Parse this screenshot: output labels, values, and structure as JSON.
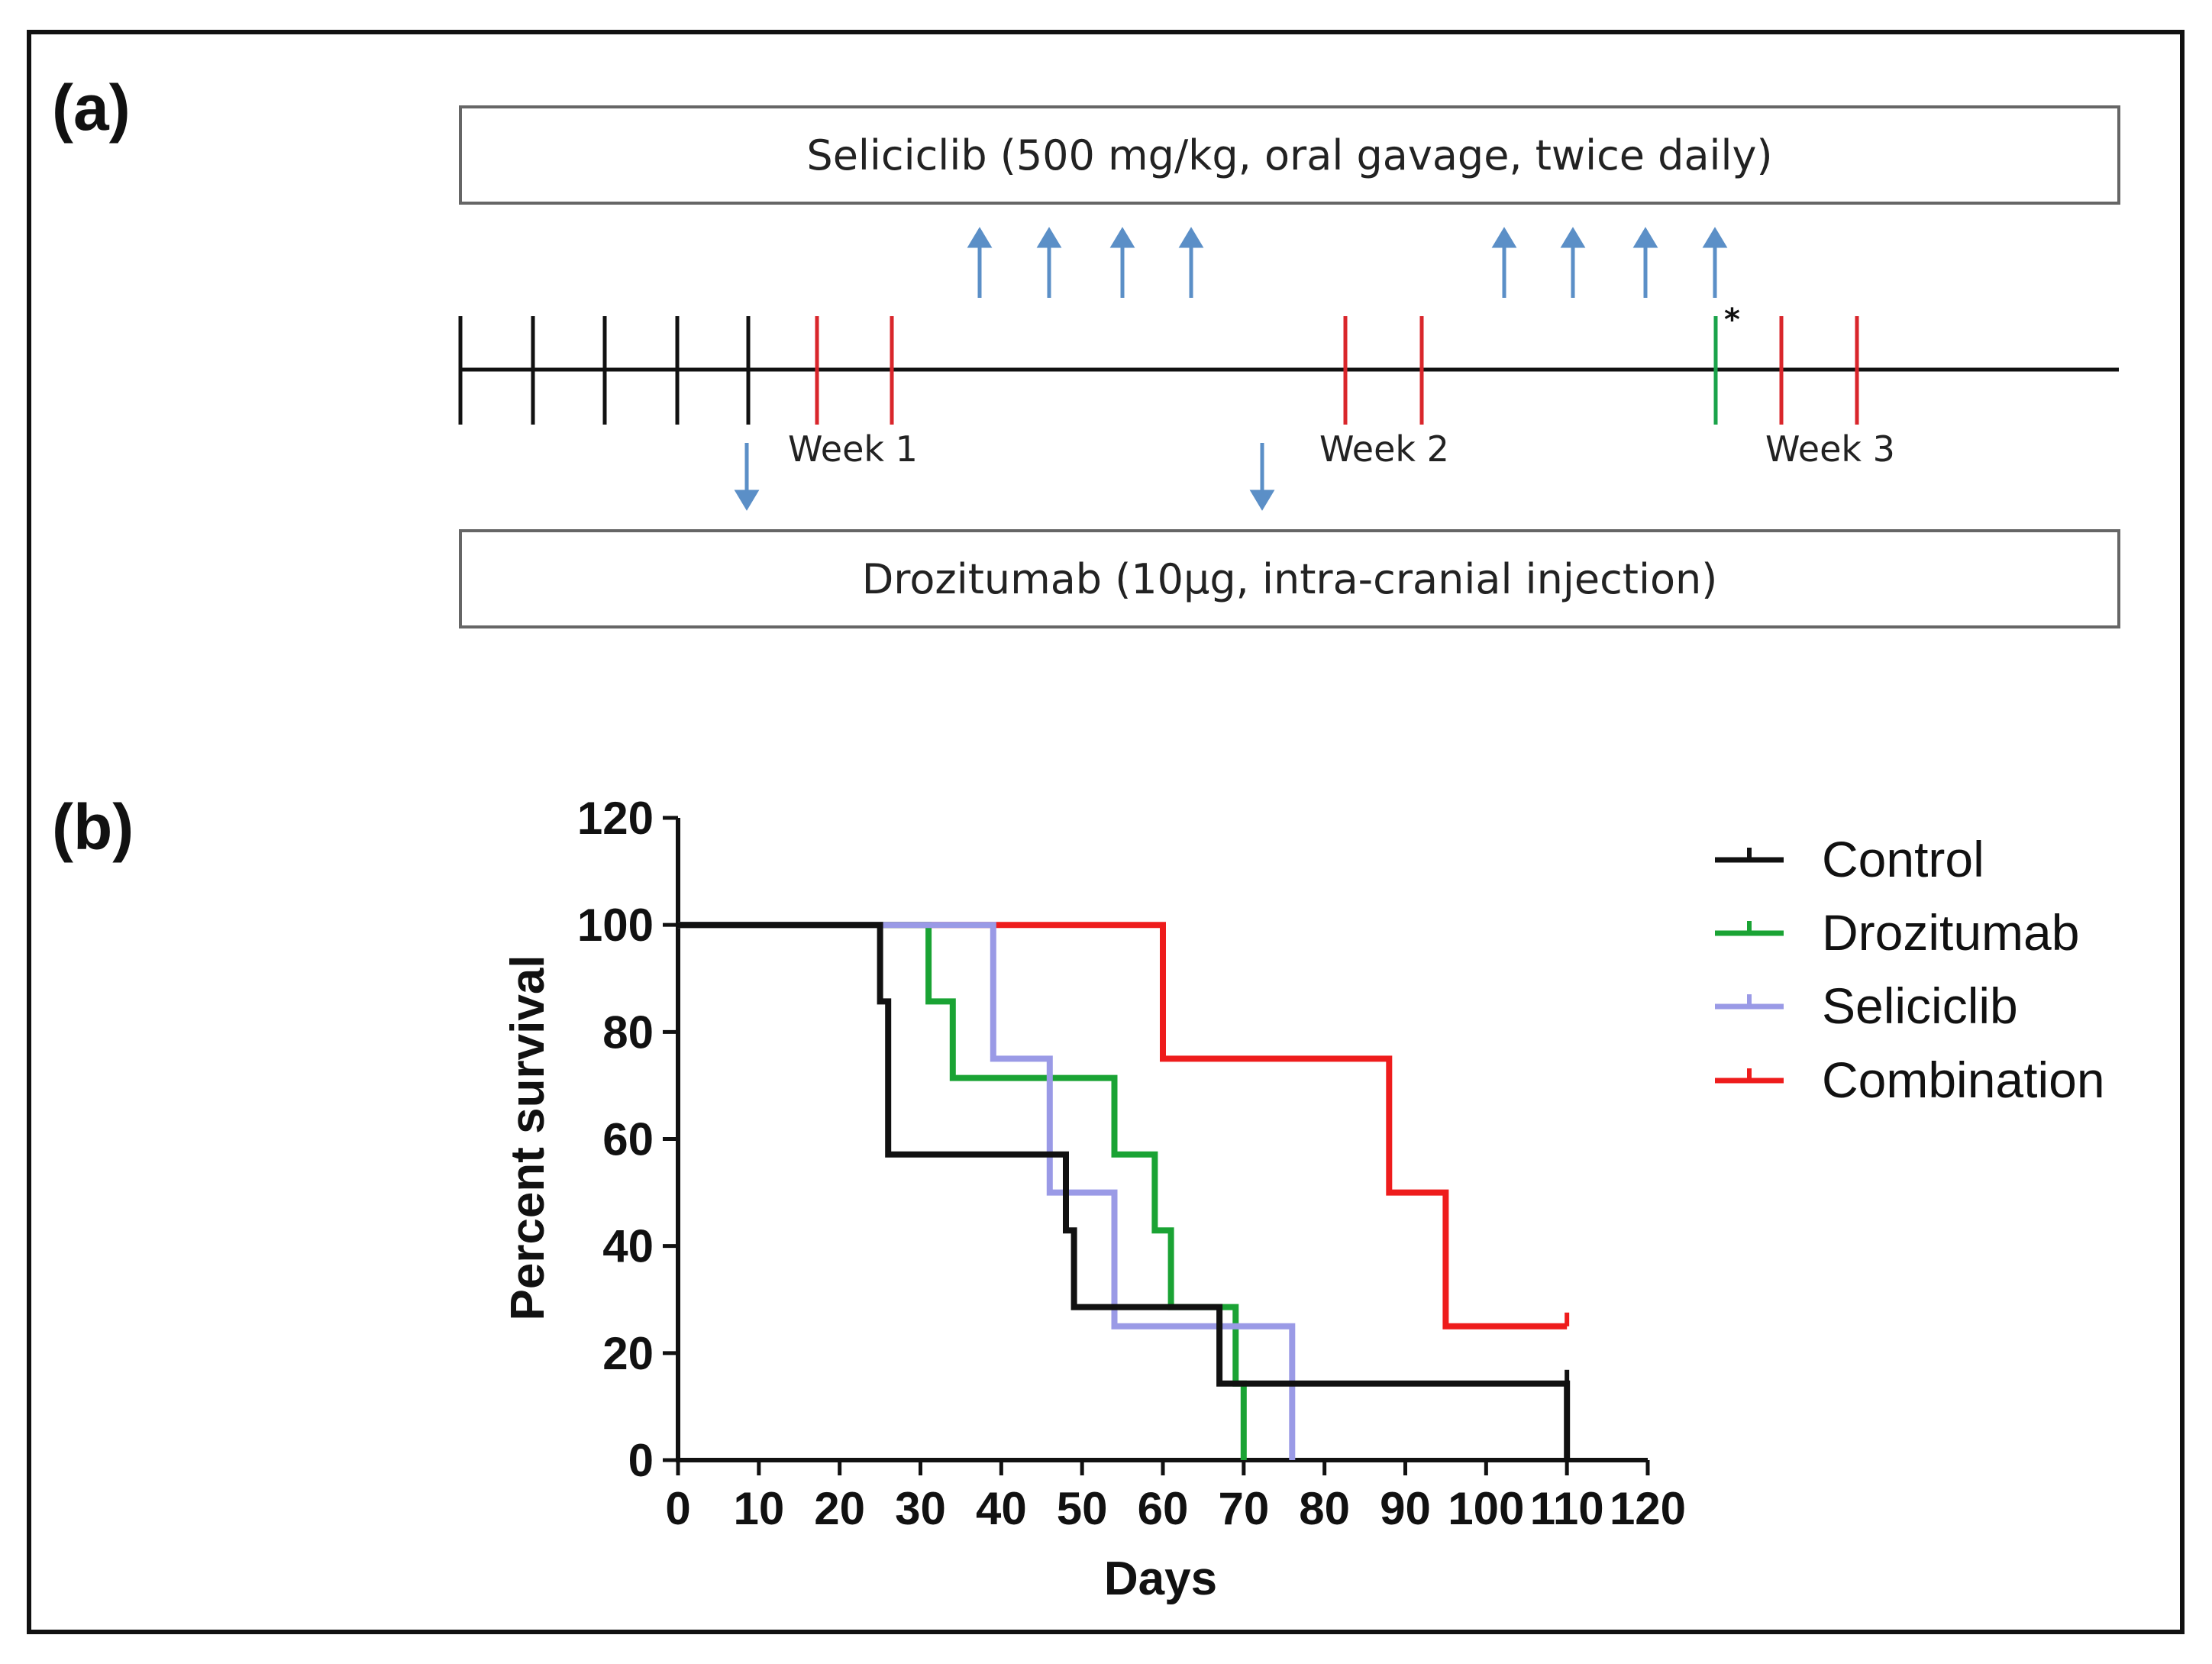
{
  "panel_a": {
    "label": "(a)",
    "seliciclib_box": "Seliciclib (500 mg/kg, oral gavage, twice daily)",
    "drozitumab_box": "Drozitumab (10µg, intra-cranial injection)",
    "weeks": [
      "Week 1",
      "Week 2",
      "Week 3"
    ],
    "asterisk": "*",
    "colors": {
      "black_tick": "#111111",
      "red_tick": "#d9262b",
      "green_tick": "#1aa34a",
      "arrow": "#5b8fc7"
    }
  },
  "panel_b": {
    "label": "(b)"
  },
  "chart_data": {
    "type": "line",
    "step": true,
    "title": "",
    "xlabel": "Days",
    "ylabel": "Percent survival",
    "xlim": [
      0,
      120
    ],
    "ylim": [
      0,
      120
    ],
    "xticks": [
      0,
      10,
      20,
      30,
      40,
      50,
      60,
      70,
      80,
      90,
      100,
      110,
      120
    ],
    "yticks": [
      0,
      20,
      40,
      60,
      80,
      100,
      120
    ],
    "legend_position": "top-right",
    "series": [
      {
        "name": "Control",
        "color": "#111111",
        "points": [
          [
            0,
            100
          ],
          [
            25,
            100
          ],
          [
            25,
            85.7
          ],
          [
            26,
            85.7
          ],
          [
            26,
            57.1
          ],
          [
            48,
            57.1
          ],
          [
            48,
            42.9
          ],
          [
            49,
            42.9
          ],
          [
            49,
            28.6
          ],
          [
            67,
            28.6
          ],
          [
            67,
            14.3
          ],
          [
            110,
            14.3
          ],
          [
            110,
            0
          ]
        ],
        "censored": [
          [
            110,
            14.3
          ]
        ]
      },
      {
        "name": "Drozitumab",
        "color": "#1aa334",
        "points": [
          [
            0,
            100
          ],
          [
            31,
            100
          ],
          [
            31,
            85.7
          ],
          [
            34,
            85.7
          ],
          [
            34,
            71.4
          ],
          [
            54,
            71.4
          ],
          [
            54,
            57.1
          ],
          [
            59,
            57.1
          ],
          [
            59,
            42.9
          ],
          [
            61,
            42.9
          ],
          [
            61,
            28.6
          ],
          [
            69,
            28.6
          ],
          [
            69,
            14.3
          ],
          [
            70,
            14.3
          ],
          [
            70,
            0
          ]
        ],
        "censored": []
      },
      {
        "name": "Seliciclib",
        "color": "#9a9ae6",
        "points": [
          [
            0,
            100
          ],
          [
            39,
            100
          ],
          [
            39,
            75
          ],
          [
            46,
            75
          ],
          [
            46,
            50
          ],
          [
            54,
            50
          ],
          [
            54,
            25
          ],
          [
            76,
            25
          ],
          [
            76,
            0
          ]
        ],
        "censored": [
          [
            39,
            75
          ],
          [
            46,
            50
          ]
        ]
      },
      {
        "name": "Combination",
        "color": "#ee1c1c",
        "points": [
          [
            0,
            100
          ],
          [
            60,
            100
          ],
          [
            60,
            75
          ],
          [
            88,
            75
          ],
          [
            88,
            50
          ],
          [
            95,
            50
          ],
          [
            95,
            25
          ],
          [
            110,
            25
          ]
        ],
        "censored": [
          [
            110,
            25
          ]
        ]
      }
    ]
  }
}
